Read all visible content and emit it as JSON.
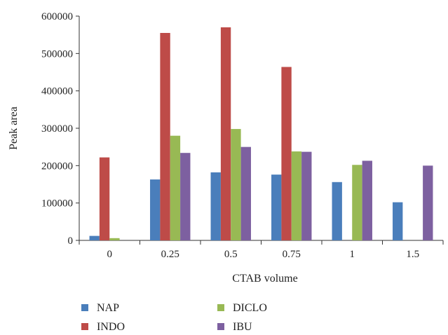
{
  "chart_data": {
    "type": "bar",
    "categories": [
      "0",
      "0.25",
      "0.5",
      "0.75",
      "1",
      "1.5"
    ],
    "series": [
      {
        "name": "NAP",
        "color": "#4a7ebb",
        "values": [
          12000,
          163000,
          182000,
          176000,
          156000,
          102000
        ]
      },
      {
        "name": "INDO",
        "color": "#be4b48",
        "values": [
          222000,
          555000,
          570000,
          464000,
          0,
          0
        ]
      },
      {
        "name": "DICLO",
        "color": "#98b954",
        "values": [
          6000,
          280000,
          298000,
          238000,
          202000,
          0
        ]
      },
      {
        "name": "IBU",
        "color": "#7d60a0",
        "values": [
          0,
          234000,
          250000,
          237000,
          213000,
          200000
        ]
      }
    ],
    "xlabel": "CTAB volume",
    "ylabel": "Peak area",
    "ylim": [
      0,
      600000
    ],
    "yticks": [
      0,
      100000,
      200000,
      300000,
      400000,
      500000,
      600000
    ],
    "grid": false,
    "legend_position": "bottom"
  }
}
